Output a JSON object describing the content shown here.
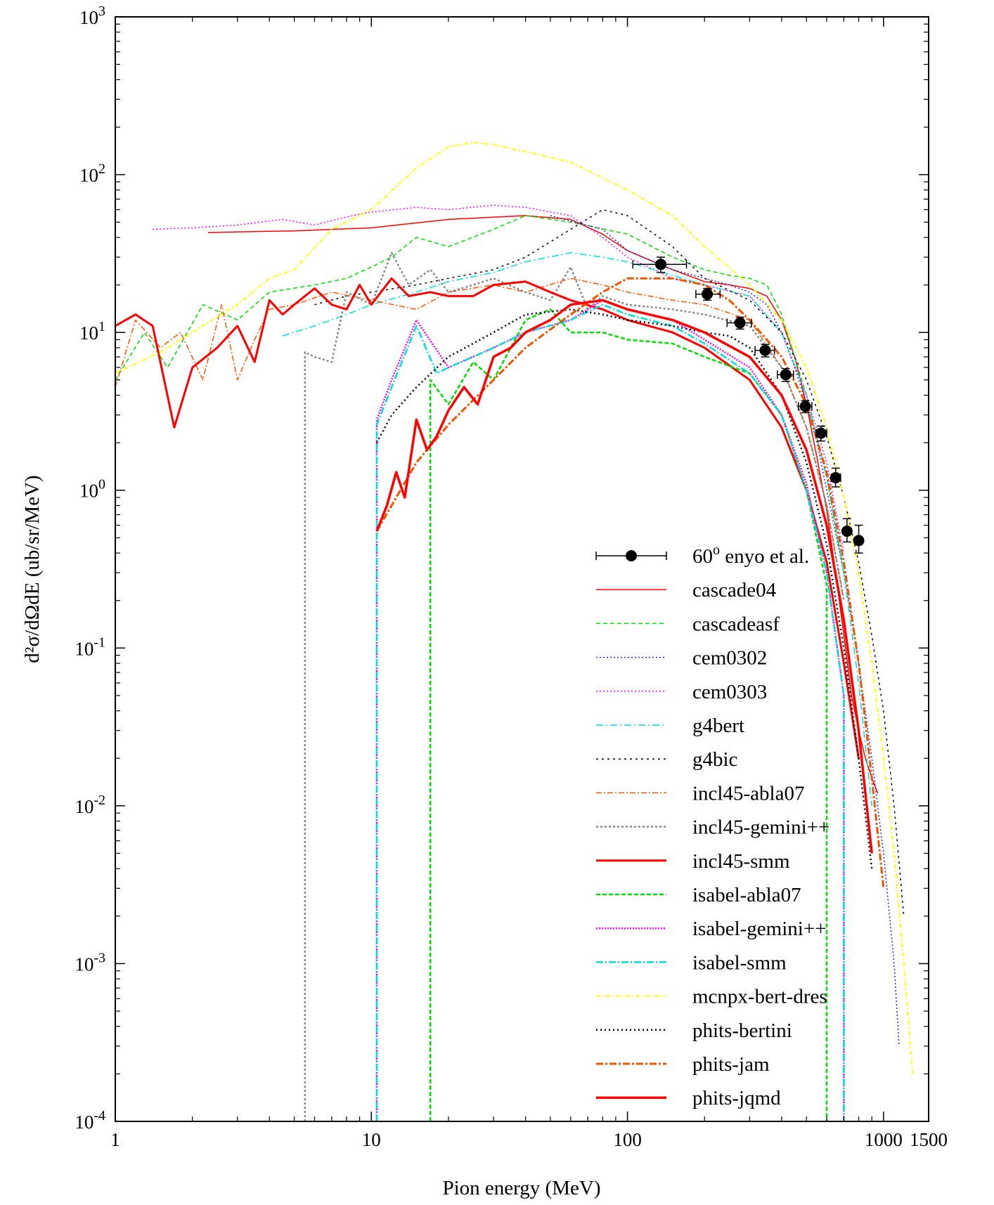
{
  "chart_data": {
    "type": "line",
    "xlabel": "Pion energy (MeV)",
    "ylabel": "d²σ/dΩdE (ub/sr/MeV)",
    "xscale": "log",
    "yscale": "log",
    "xlim": [
      1,
      1500
    ],
    "ylim": [
      0.0001,
      1000
    ],
    "x_ticks": [
      {
        "value": 1,
        "label": "1"
      },
      {
        "value": 10,
        "label": "10"
      },
      {
        "value": 100,
        "label": "100"
      },
      {
        "value": 1000,
        "label": "1000"
      },
      {
        "value": 1500,
        "label": "1500"
      }
    ],
    "y_ticks": [
      {
        "value": 0.0001,
        "base": "10",
        "exp": "-4"
      },
      {
        "value": 0.001,
        "base": "10",
        "exp": "-3"
      },
      {
        "value": 0.01,
        "base": "10",
        "exp": "-2"
      },
      {
        "value": 0.1,
        "base": "10",
        "exp": "-1"
      },
      {
        "value": 1,
        "base": "10",
        "exp": "0"
      },
      {
        "value": 10,
        "base": "10",
        "exp": "1"
      },
      {
        "value": 100,
        "base": "10",
        "exp": "2"
      },
      {
        "value": 1000,
        "base": "10",
        "exp": "3"
      }
    ],
    "grid": false,
    "legend_position": "bottom-right",
    "experiment": {
      "name": "60o enyo et al.",
      "color": "#000000",
      "points": [
        {
          "x": 135,
          "y": 27.0,
          "xerr": [
            105,
            170
          ],
          "yerr": [
            24,
            30
          ]
        },
        {
          "x": 205,
          "y": 17.5,
          "xerr": [
            185,
            230
          ],
          "yerr": [
            16,
            19
          ]
        },
        {
          "x": 275,
          "y": 11.5,
          "xerr": [
            245,
            305
          ],
          "yerr": [
            10.5,
            12.5
          ]
        },
        {
          "x": 345,
          "y": 7.7,
          "xerr": [
            315,
            375
          ],
          "yerr": [
            7.0,
            8.4
          ]
        },
        {
          "x": 415,
          "y": 5.4,
          "xerr": [
            385,
            445
          ],
          "yerr": [
            4.9,
            5.9
          ]
        },
        {
          "x": 495,
          "y": 3.4,
          "xerr": [
            465,
            525
          ],
          "yerr": [
            3.1,
            3.7
          ]
        },
        {
          "x": 570,
          "y": 2.3,
          "xerr": [
            545,
            600
          ],
          "yerr": [
            2.05,
            2.55
          ]
        },
        {
          "x": 650,
          "y": 1.2,
          "xerr": [
            625,
            680
          ],
          "yerr": [
            1.05,
            1.38
          ]
        },
        {
          "x": 720,
          "y": 0.55,
          "xerr": [
            700,
            745
          ],
          "yerr": [
            0.47,
            0.66
          ]
        },
        {
          "x": 800,
          "y": 0.48,
          "xerr": [
            780,
            820
          ],
          "yerr": [
            0.4,
            0.6
          ]
        }
      ]
    },
    "series": [
      {
        "name": "cascade04",
        "color": "#ff0000",
        "width": 1.5,
        "dash": "",
        "x": [
          2.3,
          5,
          10,
          20,
          40,
          60,
          80,
          100,
          150,
          200,
          250,
          300,
          350,
          400,
          450,
          500,
          550,
          600,
          650,
          700,
          750,
          800,
          850,
          900,
          950
        ],
        "y": [
          43,
          44,
          46,
          52,
          55,
          52,
          42,
          33,
          25,
          21,
          20,
          19,
          17,
          12,
          7,
          3.5,
          1.6,
          0.75,
          0.3,
          0.12,
          0.05,
          0.03,
          0.02,
          0.015,
          0.012
        ]
      },
      {
        "name": "cascadeasf",
        "color": "#00dd00",
        "width": 1.5,
        "dash": "6,4",
        "x": [
          1,
          1.3,
          1.6,
          2.2,
          3,
          4,
          6,
          8,
          10,
          12,
          15,
          20,
          30,
          40,
          60,
          100,
          150,
          200,
          250,
          300,
          350,
          400,
          500,
          600,
          700
        ],
        "y": [
          5,
          10,
          6,
          15,
          12,
          18,
          20,
          22,
          26,
          30,
          40,
          35,
          45,
          55,
          50,
          42,
          30,
          25,
          23,
          22,
          20,
          13,
          4,
          1.2,
          0.3
        ]
      },
      {
        "name": "cem0302",
        "color": "#2222cc",
        "width": 1.5,
        "dash": "2,3",
        "x": [
          50,
          80,
          100,
          150,
          200,
          250,
          300,
          350,
          400,
          450,
          500,
          550,
          600,
          700,
          800,
          900,
          1000,
          1100,
          1150
        ],
        "y": [
          55,
          45,
          33,
          25,
          22,
          20,
          18,
          15,
          10,
          6,
          3.5,
          2,
          1.0,
          0.3,
          0.08,
          0.02,
          0.005,
          0.001,
          0.0003
        ]
      },
      {
        "name": "cem0303",
        "color": "#ff00ff",
        "width": 1.5,
        "dash": "2,3",
        "x": [
          1.4,
          2,
          3,
          4.5,
          6,
          8,
          10,
          15,
          20,
          30,
          40,
          60,
          80,
          100,
          150,
          200,
          300,
          400,
          500,
          600,
          700
        ],
        "y": [
          45,
          46,
          48,
          52,
          48,
          54,
          58,
          62,
          60,
          64,
          62,
          55,
          40,
          30,
          22,
          20,
          17,
          10,
          4,
          1.5,
          0.4
        ]
      },
      {
        "name": "g4bert",
        "color": "#00dddd",
        "width": 1.5,
        "dash": "10,4,2,4",
        "x": [
          4.5,
          6,
          8,
          10,
          15,
          20,
          30,
          40,
          60,
          80,
          100,
          150,
          200,
          300,
          400,
          500,
          600,
          700,
          800,
          900
        ],
        "y": [
          9.5,
          11,
          13,
          15,
          18,
          21,
          24,
          28,
          32,
          30,
          28,
          23,
          20,
          17,
          10,
          4,
          1.2,
          0.3,
          0.06,
          0.01
        ]
      },
      {
        "name": "g4bic",
        "color": "#000000",
        "width": 1.5,
        "dash": "3,5",
        "x": [
          6,
          8,
          10,
          15,
          20,
          30,
          40,
          60,
          80,
          100,
          150,
          200,
          300,
          400,
          500,
          600,
          700,
          800,
          900,
          1000,
          1100,
          1200
        ],
        "y": [
          15,
          17,
          18,
          20,
          22,
          25,
          30,
          45,
          60,
          55,
          35,
          22,
          16,
          10,
          5,
          2.2,
          0.9,
          0.35,
          0.12,
          0.04,
          0.01,
          0.002
        ]
      },
      {
        "name": "incl45-abla07",
        "color": "#ff5500",
        "width": 1.5,
        "dash": "8,3,2,3",
        "x": [
          1,
          1.2,
          1.5,
          1.8,
          2.2,
          2.6,
          3,
          3.5,
          4,
          5,
          7,
          10,
          15,
          20,
          30,
          40,
          60,
          80,
          100,
          150,
          200,
          300,
          400,
          500,
          600,
          700
        ],
        "y": [
          4.5,
          12,
          8,
          10,
          5,
          15,
          5,
          9,
          14,
          15,
          18,
          16,
          14,
          18,
          20,
          18,
          22,
          20,
          18,
          16,
          15,
          12,
          6,
          2.5,
          0.8,
          0.2
        ]
      },
      {
        "name": "incl45-gemini++",
        "color": "#888888",
        "width": 2.5,
        "dash": "3,3",
        "x": [
          5.5,
          5.5,
          6,
          7,
          8,
          10,
          12,
          14,
          17,
          20,
          25,
          30,
          40,
          50,
          60,
          70,
          80,
          100,
          150,
          200,
          300,
          400,
          500,
          600,
          700
        ],
        "y": [
          0.0001,
          7.5,
          7,
          6.5,
          18,
          15,
          32,
          20,
          25,
          18,
          20,
          22,
          18,
          16,
          26,
          14,
          17,
          15,
          14,
          13,
          11,
          6,
          2.5,
          0.8,
          0.2
        ]
      },
      {
        "name": "incl45-smm",
        "color": "#ff0000",
        "width": 3,
        "dash": "",
        "x": [
          1,
          1.2,
          1.4,
          1.7,
          2,
          2.5,
          3,
          3.5,
          4,
          4.5,
          5,
          6,
          7,
          8,
          9,
          10,
          12,
          14,
          17,
          20,
          25,
          30,
          40,
          50,
          60,
          80,
          100,
          150,
          200,
          300,
          400,
          500,
          600,
          700,
          800
        ],
        "y": [
          11,
          13,
          11,
          2.5,
          6,
          8,
          11,
          6.5,
          16,
          13,
          15,
          19,
          15,
          14,
          20,
          15,
          22,
          17,
          18,
          17,
          17,
          20,
          21,
          18,
          16,
          14,
          12,
          10,
          8,
          5,
          2.5,
          1.0,
          0.35,
          0.08,
          0.02
        ]
      },
      {
        "name": "isabel-abla07",
        "color": "#00dd00",
        "width": 2.5,
        "dash": "6,3",
        "x": [
          17,
          17,
          20,
          25,
          30,
          40,
          50,
          60,
          80,
          100,
          150,
          200,
          300,
          400,
          500,
          600,
          600
        ],
        "y": [
          0.0001,
          5,
          3.5,
          6.5,
          5,
          12,
          14,
          10,
          10,
          9,
          8.5,
          7,
          5.5,
          3,
          1.0,
          0.25,
          0.0001
        ]
      },
      {
        "name": "isabel-gemini++",
        "color": "#ff00ff",
        "width": 2.5,
        "dash": "2,2",
        "x": [
          10.5,
          10.5,
          12,
          15,
          20,
          30,
          40,
          60,
          80,
          100,
          150,
          200,
          300,
          400,
          500,
          600,
          700,
          700
        ],
        "y": [
          0.0001,
          2.8,
          5,
          12,
          6,
          8,
          10,
          12,
          16,
          14,
          12,
          9,
          6,
          3,
          1.1,
          0.3,
          0.05,
          0.0001
        ]
      },
      {
        "name": "isabel-smm",
        "color": "#00dddd",
        "width": 2.5,
        "dash": "10,3,2,3",
        "x": [
          10.5,
          10.5,
          12,
          15,
          18,
          20,
          25,
          30,
          40,
          60,
          80,
          100,
          150,
          200,
          300,
          400,
          500,
          600,
          700,
          700
        ],
        "y": [
          0.0001,
          2.6,
          4.5,
          11,
          5.5,
          6,
          7,
          8,
          10,
          12,
          15,
          13,
          11,
          8.5,
          5.5,
          3,
          1.0,
          0.3,
          0.05,
          0.0001
        ]
      },
      {
        "name": "mcnpx-bert-dres",
        "color": "#ffff00",
        "width": 2,
        "dash": "6,3,2,3",
        "x": [
          1,
          1.5,
          2,
          3,
          4,
          5,
          7,
          10,
          15,
          20,
          25,
          30,
          40,
          60,
          100,
          150,
          200,
          300,
          400,
          500,
          600,
          700,
          800,
          900,
          1000,
          1100,
          1200,
          1300
        ],
        "y": [
          5.5,
          7.5,
          10,
          15,
          22,
          25,
          45,
          60,
          110,
          150,
          160,
          155,
          140,
          120,
          80,
          55,
          35,
          20,
          12,
          6,
          2.5,
          0.9,
          0.3,
          0.08,
          0.02,
          0.005,
          0.001,
          0.0002
        ]
      },
      {
        "name": "phits-bertini",
        "color": "#000000",
        "width": 2.5,
        "dash": "2,4",
        "x": [
          10.5,
          12,
          15,
          20,
          30,
          40,
          60,
          80,
          100,
          150,
          200,
          250,
          300,
          400,
          500,
          600,
          700,
          800,
          900
        ],
        "y": [
          2.0,
          3.0,
          4.5,
          7,
          10,
          13,
          14,
          13,
          12,
          11,
          10,
          9.5,
          8,
          4,
          1.5,
          0.45,
          0.1,
          0.02,
          0.004
        ]
      },
      {
        "name": "phits-jam",
        "color": "#ee5500",
        "width": 3,
        "dash": "10,3,3,3",
        "x": [
          10.5,
          12,
          15,
          20,
          30,
          40,
          60,
          80,
          100,
          150,
          200,
          250,
          300,
          400,
          500,
          600,
          700,
          800,
          900,
          1000
        ],
        "y": [
          0.55,
          0.8,
          1.5,
          2.6,
          5,
          8,
          13,
          18,
          22,
          22,
          20,
          16,
          12,
          7,
          3.5,
          1.3,
          0.35,
          0.08,
          0.015,
          0.003
        ]
      },
      {
        "name": "phits-jqmd",
        "color": "#ff0000",
        "width": 3.5,
        "dash": "",
        "x": [
          10.5,
          11.5,
          12.5,
          13.5,
          15,
          16.5,
          18,
          20,
          23,
          26,
          30,
          35,
          40,
          50,
          60,
          80,
          100,
          150,
          200,
          300,
          400,
          500,
          600,
          700,
          800,
          900
        ],
        "y": [
          0.55,
          0.8,
          1.3,
          0.9,
          2.8,
          1.8,
          2.2,
          3.2,
          4.5,
          3.5,
          7,
          8,
          10,
          12,
          15,
          16,
          14,
          12,
          10,
          7,
          4,
          1.8,
          0.6,
          0.15,
          0.03,
          0.005
        ]
      }
    ]
  }
}
